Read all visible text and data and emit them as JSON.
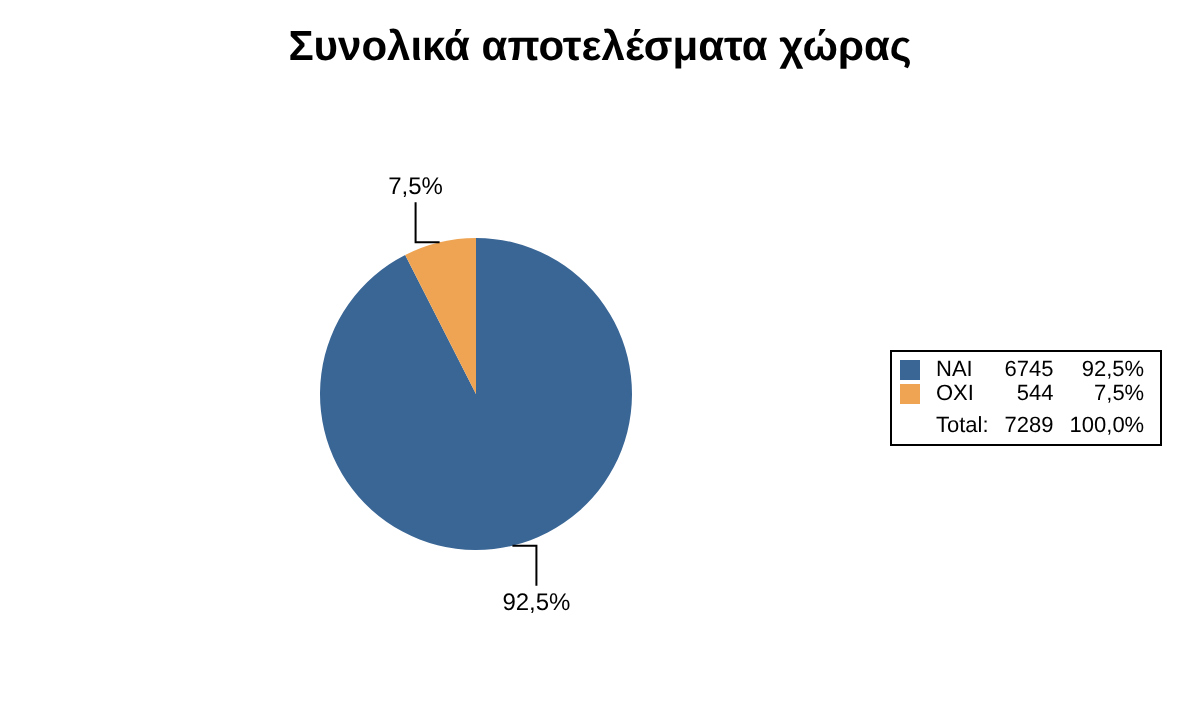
{
  "chart_data": {
    "type": "pie",
    "title": "Συνολικά αποτελέσματα χώρας",
    "categories": [
      "NAI",
      "OXI"
    ],
    "values": [
      92.5,
      7.5
    ],
    "colors": [
      "#3a6696",
      "#eea452"
    ],
    "value_labels": [
      "92,5%",
      "7,5%"
    ],
    "legend": "right",
    "annotations": [
      "6745",
      "544",
      "Total:",
      "7289",
      "100,0%"
    ]
  }
}
